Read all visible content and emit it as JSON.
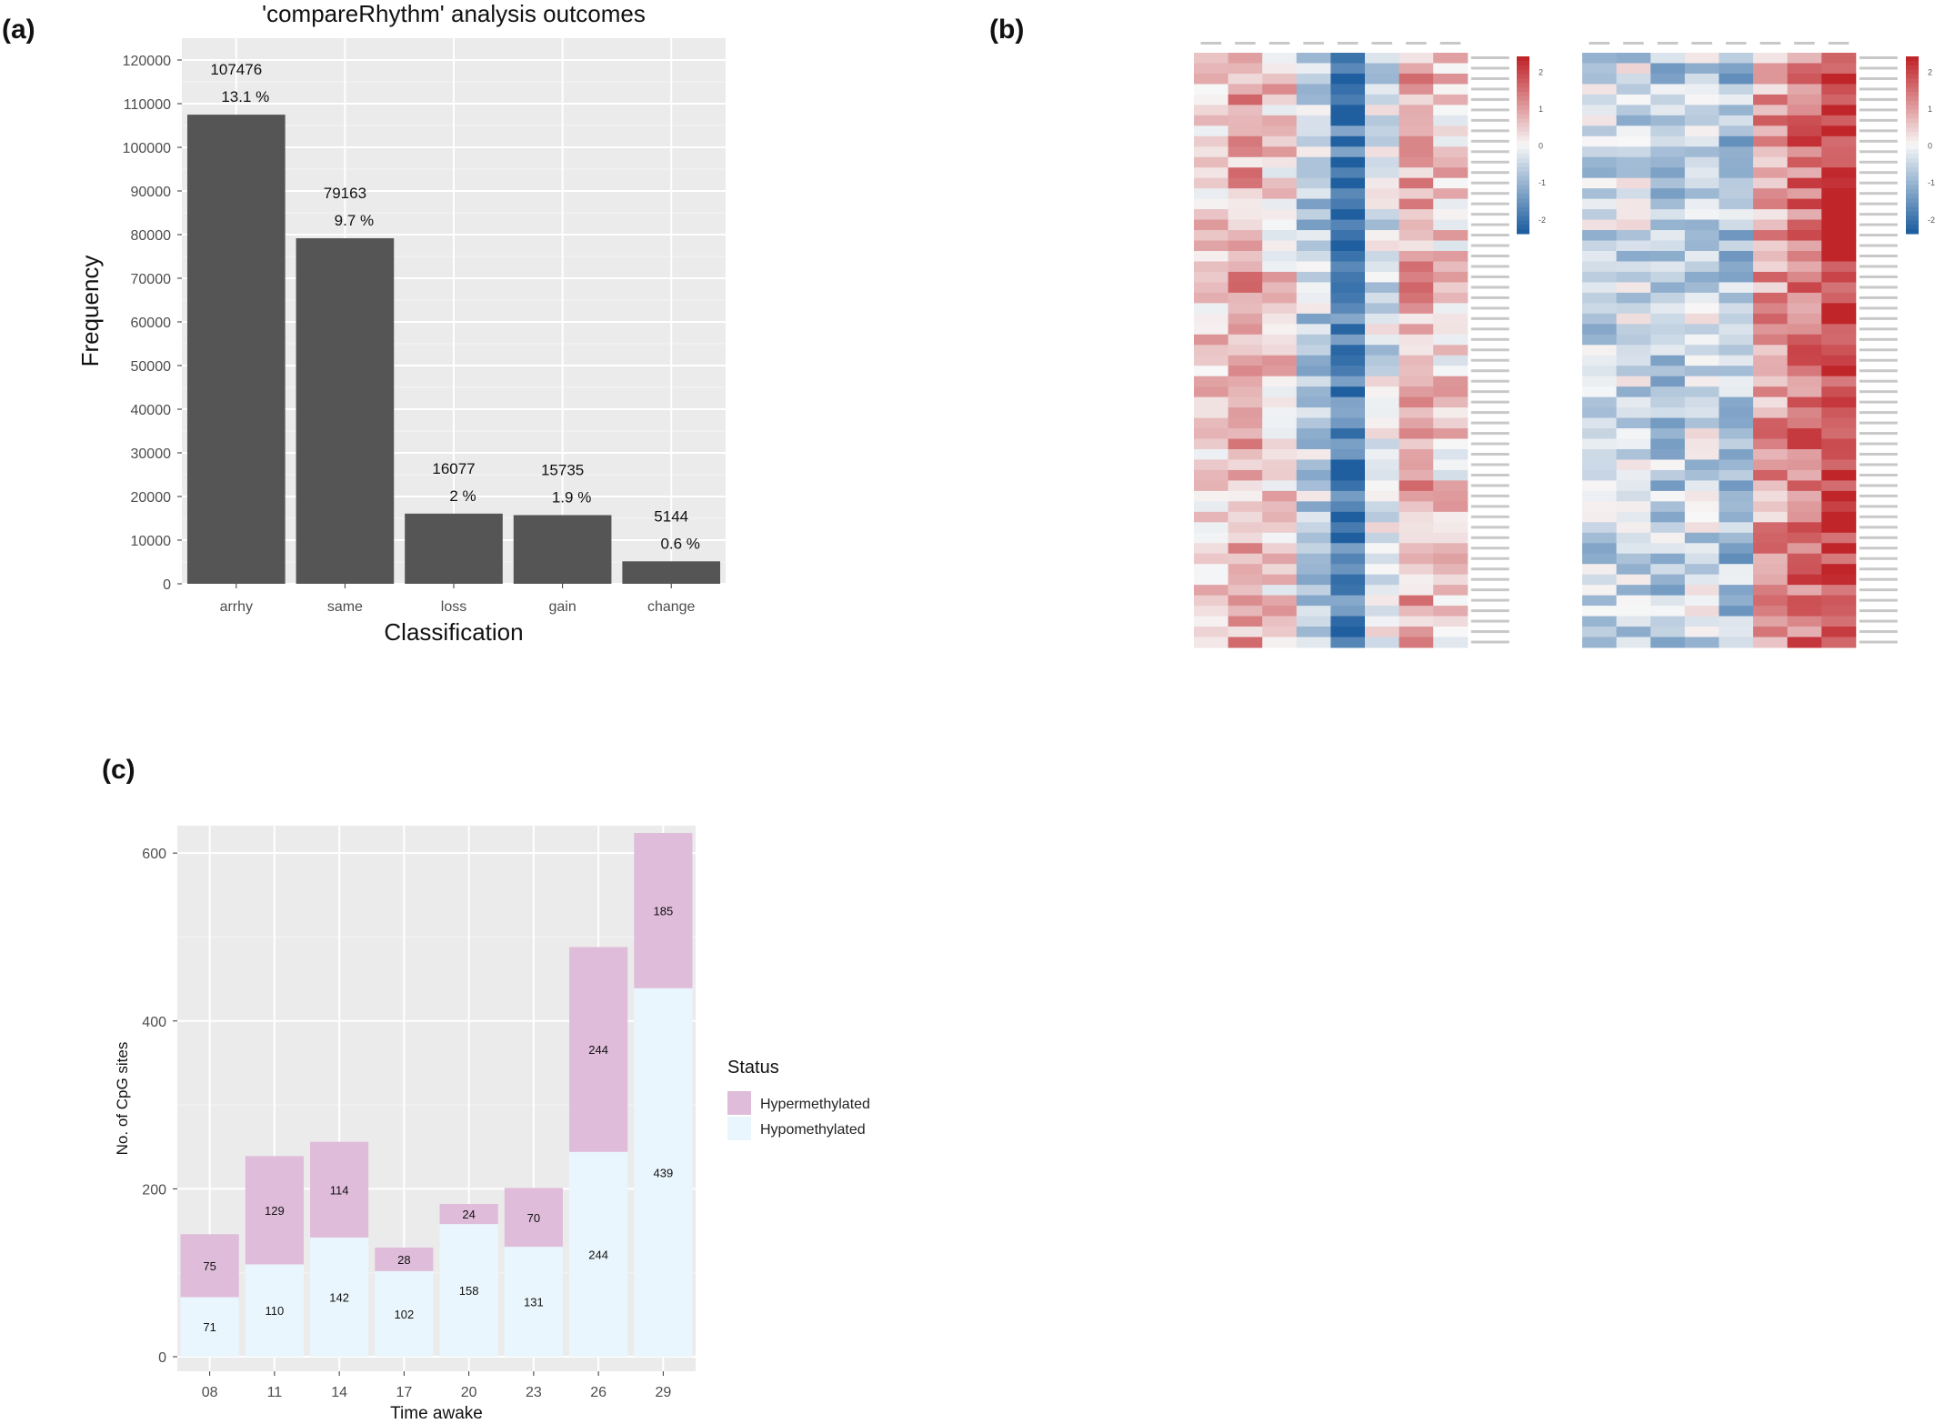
{
  "panels": {
    "a": "(a)",
    "b": "(b)",
    "c": "(c)"
  },
  "chart_data": [
    {
      "type": "bar",
      "title": "'compareRhythm' analysis outcomes",
      "xlabel": "Classification",
      "ylabel": "Frequency",
      "ylim": [
        0,
        125000
      ],
      "yticks": [
        0,
        10000,
        20000,
        30000,
        40000,
        50000,
        60000,
        70000,
        80000,
        90000,
        100000,
        110000,
        120000
      ],
      "categories": [
        "arrhy",
        "same",
        "loss",
        "gain",
        "change"
      ],
      "values": [
        107476,
        79163,
        16077,
        15735,
        5144
      ],
      "percent_labels": [
        "13.1 %",
        "9.7 %",
        "2 %",
        "1.9 %",
        "0.6 %"
      ],
      "grid": true,
      "bar_color": "#555555",
      "panel_bg": "#ebebeb"
    },
    {
      "type": "heatmap",
      "grid": false,
      "colorscale": {
        "low": "#1f5fa0",
        "mid": "#f7f7f7",
        "high": "#c0252a"
      },
      "colorbar_ticks": [
        2,
        1,
        0,
        -1,
        -2
      ],
      "left": {
        "rows": 57,
        "cols": 8,
        "column_profile": [
          0.6,
          0.9,
          0.5,
          -0.6,
          -2.0,
          -0.3,
          0.9,
          0.4
        ]
      },
      "right": {
        "rows": 57,
        "cols": 8,
        "column_profile": [
          -0.5,
          -0.4,
          -0.7,
          -0.4,
          -0.9,
          1.0,
          1.5,
          2.2
        ]
      }
    },
    {
      "type": "bar",
      "stacked": true,
      "xlabel": "Time awake",
      "ylabel": "No. of CpG sites",
      "ylim": [
        0,
        650
      ],
      "yticks": [
        0,
        200,
        400,
        600
      ],
      "categories": [
        "08",
        "11",
        "14",
        "17",
        "20",
        "23",
        "26",
        "29"
      ],
      "legend": {
        "title": "Status",
        "position": "right"
      },
      "series": [
        {
          "name": "Hypomethylated",
          "values": [
            71,
            110,
            142,
            102,
            158,
            131,
            244,
            439
          ],
          "color": "#eaf6fd"
        },
        {
          "name": "Hypermethylated",
          "values": [
            75,
            129,
            114,
            28,
            24,
            70,
            244,
            185
          ],
          "color": "#dfbcd9"
        }
      ],
      "grid": true,
      "panel_bg": "#ebebeb"
    }
  ]
}
